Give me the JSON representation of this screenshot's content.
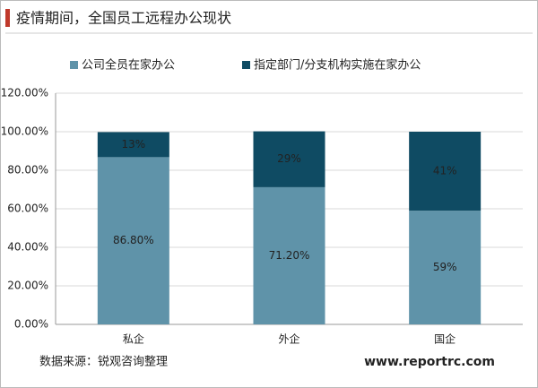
{
  "chart_data": {
    "type": "stacked_bar",
    "title": "疫情期间，全国员工远程办公现状",
    "categories": [
      "私企",
      "外企",
      "国企"
    ],
    "series": [
      {
        "name": "公司全员在家办公",
        "color": "#5f93a9",
        "values": [
          86.8,
          71.2,
          59
        ],
        "value_labels": [
          "86.80%",
          "71.20%",
          "59%"
        ]
      },
      {
        "name": "指定部门/分支机构实施在家办公",
        "color": "#0f4b63",
        "values": [
          13,
          29,
          41
        ],
        "value_labels": [
          "13%",
          "29%",
          "41%"
        ]
      }
    ],
    "ylim": [
      0,
      120
    ],
    "yticks": [
      {
        "value": 0,
        "label": "0.00%"
      },
      {
        "value": 20,
        "label": "20.00%"
      },
      {
        "value": 40,
        "label": "40.00%"
      },
      {
        "value": 60,
        "label": "60.00%"
      },
      {
        "value": 80,
        "label": "80.00%"
      },
      {
        "value": 100,
        "label": "100.00%"
      },
      {
        "value": 120,
        "label": "120.00%"
      }
    ],
    "grid": true,
    "source": "数据来源：锐观咨询整理",
    "watermark": "www.reportrc.com"
  }
}
